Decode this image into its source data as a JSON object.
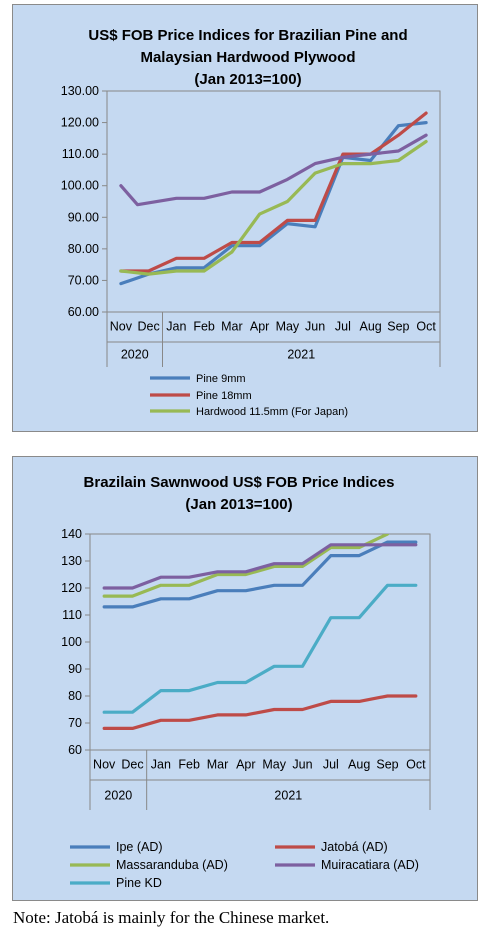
{
  "chart_data": [
    {
      "type": "line",
      "title": "US$ FOB Price Indices for Brazilian Pine and",
      "title_line2": "Malaysian Hardwood Plywood",
      "title_line3": "(Jan 2013=100)",
      "categories": [
        "Nov",
        "Dec",
        "Jan",
        "Feb",
        "Mar",
        "Apr",
        "May",
        "Jun",
        "Jul",
        "Aug",
        "Sep",
        "Oct"
      ],
      "year_groups": [
        {
          "label": "2020",
          "count": 2
        },
        {
          "label": "2021",
          "count": 10
        }
      ],
      "ylim": [
        60,
        130
      ],
      "yticks": [
        "60.00",
        "70.00",
        "80.00",
        "90.00",
        "100.00",
        "110.00",
        "120.00",
        "130.00"
      ],
      "ytick_values": [
        60,
        70,
        80,
        90,
        100,
        110,
        120,
        130
      ],
      "legend_position": "bottom",
      "grid": false,
      "series": [
        {
          "name": "Pine 9mm",
          "color": "#4a7ebb",
          "points": [
            [
              0,
              69
            ],
            [
              1,
              72
            ],
            [
              2,
              74
            ],
            [
              3,
              74
            ],
            [
              4,
              81
            ],
            [
              5,
              81
            ],
            [
              6,
              88
            ],
            [
              7,
              87
            ],
            [
              8,
              109
            ],
            [
              9,
              108
            ],
            [
              10,
              119
            ],
            [
              11,
              120
            ]
          ]
        },
        {
          "name": "Pine 18mm",
          "color": "#be4b48",
          "points": [
            [
              0,
              73
            ],
            [
              1,
              73
            ],
            [
              2,
              77
            ],
            [
              3,
              77
            ],
            [
              4,
              82
            ],
            [
              5,
              82
            ],
            [
              6,
              89
            ],
            [
              7,
              89
            ],
            [
              8,
              110
            ],
            [
              9,
              110
            ],
            [
              10,
              116
            ],
            [
              11,
              123
            ]
          ]
        },
        {
          "name": "Hardwood 11.5mm (For Japan)",
          "color": "#98b954",
          "points": [
            [
              0,
              73
            ],
            [
              1,
              72
            ],
            [
              2,
              73
            ],
            [
              3,
              73
            ],
            [
              4,
              79
            ],
            [
              5,
              91
            ],
            [
              6,
              95
            ],
            [
              7,
              104
            ],
            [
              8,
              107
            ],
            [
              9,
              107
            ],
            [
              10,
              108
            ],
            [
              11,
              114
            ]
          ]
        },
        {
          "name": "",
          "color": "#7d60a0",
          "points": [
            [
              0,
              100
            ],
            [
              0.6,
              94
            ],
            [
              2,
              96
            ],
            [
              3,
              96
            ],
            [
              4,
              98
            ],
            [
              5,
              98
            ],
            [
              6,
              102
            ],
            [
              7,
              107
            ],
            [
              8,
              109
            ],
            [
              9,
              110
            ],
            [
              10,
              111
            ],
            [
              11,
              116
            ]
          ]
        }
      ]
    },
    {
      "type": "line",
      "title": "Brazilain Sawnwood US$ FOB Price Indices",
      "title_line2": "(Jan 2013=100)",
      "categories": [
        "Nov",
        "Dec",
        "Jan",
        "Feb",
        "Mar",
        "Apr",
        "May",
        "Jun",
        "Jul",
        "Aug",
        "Sep",
        "Oct"
      ],
      "year_groups": [
        {
          "label": "2020",
          "count": 2
        },
        {
          "label": "2021",
          "count": 10
        }
      ],
      "ylim": [
        60,
        140
      ],
      "yticks": [
        "60",
        "70",
        "80",
        "90",
        "100",
        "110",
        "120",
        "130",
        "140"
      ],
      "ytick_values": [
        60,
        70,
        80,
        90,
        100,
        110,
        120,
        130,
        140
      ],
      "legend_position": "bottom",
      "grid": false,
      "series": [
        {
          "name": "Ipe (AD)",
          "color": "#4a7ebb",
          "points": [
            [
              0,
              113
            ],
            [
              1,
              113
            ],
            [
              2,
              116
            ],
            [
              3,
              116
            ],
            [
              4,
              119
            ],
            [
              5,
              119
            ],
            [
              6,
              121
            ],
            [
              7,
              121
            ],
            [
              8,
              132
            ],
            [
              9,
              132
            ],
            [
              10,
              137
            ],
            [
              11,
              137
            ]
          ]
        },
        {
          "name": "Jatobá (AD)",
          "color": "#be4b48",
          "points": [
            [
              0,
              68
            ],
            [
              1,
              68
            ],
            [
              2,
              71
            ],
            [
              3,
              71
            ],
            [
              4,
              73
            ],
            [
              5,
              73
            ],
            [
              6,
              75
            ],
            [
              7,
              75
            ],
            [
              8,
              78
            ],
            [
              9,
              78
            ],
            [
              10,
              80
            ],
            [
              11,
              80
            ]
          ]
        },
        {
          "name": "Massaranduba (AD)",
          "color": "#98b954",
          "points": [
            [
              0,
              117
            ],
            [
              1,
              117
            ],
            [
              2,
              121
            ],
            [
              3,
              121
            ],
            [
              4,
              125
            ],
            [
              5,
              125
            ],
            [
              6,
              128
            ],
            [
              7,
              128
            ],
            [
              8,
              135
            ],
            [
              9,
              135
            ],
            [
              10,
              140
            ]
          ]
        },
        {
          "name": "Muiracatiara (AD)",
          "color": "#7d60a0",
          "points": [
            [
              0,
              120
            ],
            [
              1,
              120
            ],
            [
              2,
              124
            ],
            [
              3,
              124
            ],
            [
              4,
              126
            ],
            [
              5,
              126
            ],
            [
              6,
              129
            ],
            [
              7,
              129
            ],
            [
              8,
              136
            ],
            [
              9,
              136
            ],
            [
              10,
              136
            ],
            [
              11,
              136
            ]
          ]
        },
        {
          "name": "Pine KD",
          "color": "#4bacc6",
          "points": [
            [
              0,
              74
            ],
            [
              1,
              74
            ],
            [
              2,
              82
            ],
            [
              3,
              82
            ],
            [
              4,
              85
            ],
            [
              5,
              85
            ],
            [
              6,
              91
            ],
            [
              7,
              91
            ],
            [
              8,
              109
            ],
            [
              9,
              109
            ],
            [
              10,
              121
            ],
            [
              11,
              121
            ]
          ]
        }
      ]
    }
  ],
  "note": "Note: Jatobá is mainly for the Chinese market."
}
